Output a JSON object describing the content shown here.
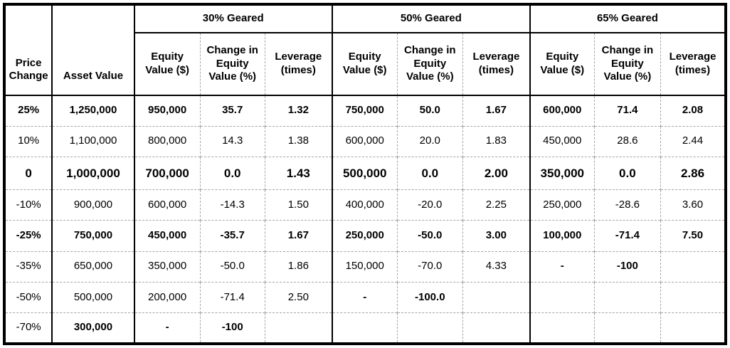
{
  "table": {
    "corner_headers": [
      "Price Change",
      "Asset Value"
    ],
    "groups": [
      "30% Geared",
      "50% Geared",
      "65% Geared"
    ],
    "sub_headers": [
      "Equity Value ($)",
      "Change in Equity Value (%)",
      "Leverage (times)"
    ],
    "colors": {
      "border_major": "#000000",
      "border_minor_dashed": "#a6a6a6",
      "text": "#000000",
      "background": "#ffffff"
    },
    "rows": [
      {
        "bold_all": true,
        "large": false,
        "bold_cells": [],
        "cells": [
          "25%",
          "1,250,000",
          "950,000",
          "35.7",
          "1.32",
          "750,000",
          "50.0",
          "1.67",
          "600,000",
          "71.4",
          "2.08"
        ]
      },
      {
        "bold_all": false,
        "large": false,
        "bold_cells": [],
        "cells": [
          "10%",
          "1,100,000",
          "800,000",
          "14.3",
          "1.38",
          "600,000",
          "20.0",
          "1.83",
          "450,000",
          "28.6",
          "2.44"
        ]
      },
      {
        "bold_all": true,
        "large": true,
        "bold_cells": [],
        "cells": [
          "0",
          "1,000,000",
          "700,000",
          "0.0",
          "1.43",
          "500,000",
          "0.0",
          "2.00",
          "350,000",
          "0.0",
          "2.86"
        ]
      },
      {
        "bold_all": false,
        "large": false,
        "bold_cells": [],
        "cells": [
          "-10%",
          "900,000",
          "600,000",
          "-14.3",
          "1.50",
          "400,000",
          "-20.0",
          "2.25",
          "250,000",
          "-28.6",
          "3.60"
        ]
      },
      {
        "bold_all": true,
        "large": false,
        "bold_cells": [],
        "cells": [
          "-25%",
          "750,000",
          "450,000",
          "-35.7",
          "1.67",
          "250,000",
          "-50.0",
          "3.00",
          "100,000",
          "-71.4",
          "7.50"
        ]
      },
      {
        "bold_all": false,
        "large": false,
        "bold_cells": [
          8,
          9
        ],
        "cells": [
          "-35%",
          "650,000",
          "350,000",
          "-50.0",
          "1.86",
          "150,000",
          "-70.0",
          "4.33",
          "-",
          "-100",
          ""
        ]
      },
      {
        "bold_all": false,
        "large": false,
        "bold_cells": [
          5,
          6
        ],
        "cells": [
          "-50%",
          "500,000",
          "200,000",
          "-71.4",
          "2.50",
          "-",
          "-100.0",
          "",
          "",
          "",
          ""
        ]
      },
      {
        "bold_all": false,
        "large": false,
        "bold_cells": [
          1,
          2,
          3
        ],
        "cells": [
          "-70%",
          "300,000",
          "-",
          "-100",
          "",
          "",
          "",
          "",
          "",
          "",
          ""
        ]
      }
    ]
  }
}
